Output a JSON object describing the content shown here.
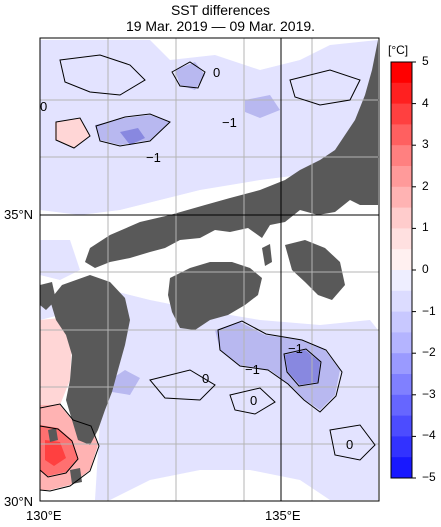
{
  "title": "SST differences",
  "subtitle": "19 Mar. 2019 — 09 Mar. 2019.",
  "axes": {
    "lat_labels": [
      "35°N",
      "30°N"
    ],
    "lon_labels": [
      "130°E",
      "135°E"
    ]
  },
  "colorbar": {
    "unit": "[°C]",
    "ticks": [
      "5",
      "4",
      "3",
      "2",
      "1",
      "0",
      "−1",
      "−2",
      "−3",
      "−4",
      "−5"
    ],
    "colors": {
      "pos": [
        "#ff0000",
        "#ff2020",
        "#ff4040",
        "#ff6060",
        "#ff8080",
        "#ff9a9a",
        "#ffb3b3",
        "#ffcccc",
        "#ffe0e0",
        "#fff0f0"
      ],
      "neg": [
        "#eeeeff",
        "#dcdcff",
        "#c8c8ff",
        "#b4b4ff",
        "#9a9aff",
        "#8080ff",
        "#6666ff",
        "#4c4cff",
        "#3232ff",
        "#1818ff"
      ]
    }
  },
  "contour_labels": [
    "0",
    "0",
    "−1",
    "−1",
    "−1",
    "−1",
    "0",
    "0",
    "0"
  ],
  "colors": {
    "land": "#595959",
    "grid": "#b4b4b4",
    "light_blue": "#e3e3ff",
    "mid_blue": "#b8b8f0"
  }
}
